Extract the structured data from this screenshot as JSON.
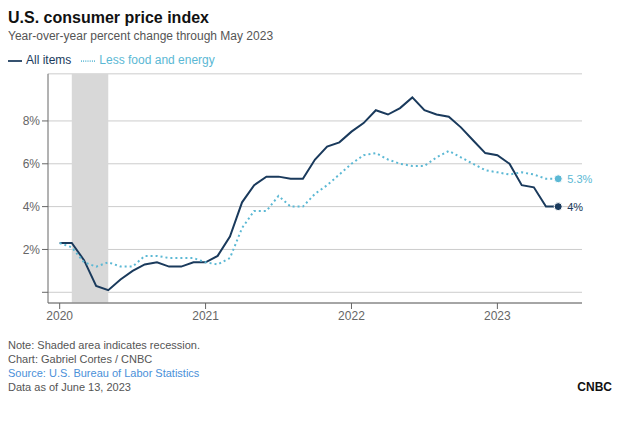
{
  "chart_data": {
    "type": "line",
    "title": "U.S. consumer price index",
    "subtitle": "Year-over-year percent change through May 2023",
    "notes": [
      {
        "text": "Note: Shaded area indicates recession."
      },
      {
        "text": "Chart: Gabriel Cortes / CNBC"
      },
      {
        "text": "Source: U.S. Bureau of Labor Statistics",
        "color": "#4a90d9"
      },
      {
        "text": "Data as of June 13, 2023"
      }
    ],
    "credit": "CNBC",
    "recession": {
      "start": 2020.083,
      "end": 2020.333,
      "color": "#d8d8d8"
    },
    "x": [
      2020.0,
      2020.083,
      2020.167,
      2020.25,
      2020.333,
      2020.417,
      2020.5,
      2020.583,
      2020.667,
      2020.75,
      2020.833,
      2020.917,
      2021.0,
      2021.083,
      2021.167,
      2021.25,
      2021.333,
      2021.417,
      2021.5,
      2021.583,
      2021.667,
      2021.75,
      2021.833,
      2021.917,
      2022.0,
      2022.083,
      2022.167,
      2022.25,
      2022.333,
      2022.417,
      2022.5,
      2022.583,
      2022.667,
      2022.75,
      2022.833,
      2022.917,
      2023.0,
      2023.083,
      2023.167,
      2023.25,
      2023.333,
      2023.417
    ],
    "series": [
      {
        "name": "All items",
        "color": "#1a3a5c",
        "line_style": "solid",
        "values": [
          2.3,
          2.3,
          1.5,
          0.3,
          0.1,
          0.6,
          1.0,
          1.3,
          1.4,
          1.2,
          1.2,
          1.4,
          1.4,
          1.7,
          2.6,
          4.2,
          5.0,
          5.4,
          5.4,
          5.3,
          5.3,
          6.2,
          6.8,
          7.0,
          7.5,
          7.9,
          8.5,
          8.3,
          8.6,
          9.1,
          8.5,
          8.3,
          8.2,
          7.7,
          7.1,
          6.5,
          6.4,
          6.0,
          5.0,
          4.9,
          4.0,
          4.0
        ]
      },
      {
        "name": "Less food and energy",
        "color": "#5bb8d4",
        "line_style": "dotted",
        "values": [
          2.3,
          2.1,
          1.4,
          1.2,
          1.4,
          1.2,
          1.2,
          1.7,
          1.7,
          1.6,
          1.6,
          1.6,
          1.4,
          1.3,
          1.6,
          3.0,
          3.8,
          3.8,
          4.5,
          4.0,
          4.0,
          4.6,
          5.0,
          5.5,
          6.0,
          6.4,
          6.5,
          6.2,
          6.0,
          5.9,
          5.9,
          6.3,
          6.6,
          6.3,
          6.0,
          5.7,
          5.6,
          5.5,
          5.6,
          5.5,
          5.3,
          5.3
        ]
      }
    ],
    "annotations": [
      {
        "text": "4%",
        "x": 2023.417,
        "y": 4.0,
        "color": "#1a3a5c"
      },
      {
        "text": "5.3%",
        "x": 2023.417,
        "y": 5.3,
        "color": "#5bb8d4"
      }
    ],
    "xlim": [
      2019.92,
      2023.58
    ],
    "xticks": [
      2020,
      2021,
      2022,
      2023
    ],
    "ylim": [
      -0.5,
      10.2
    ],
    "yticks": [
      {
        "value": 0,
        "label": null
      },
      {
        "value": 2,
        "label": "2%"
      },
      {
        "value": 4,
        "label": "4%"
      },
      {
        "value": 6,
        "label": "6%"
      },
      {
        "value": 8,
        "label": "8%"
      }
    ],
    "grid": true,
    "legend": "top"
  }
}
